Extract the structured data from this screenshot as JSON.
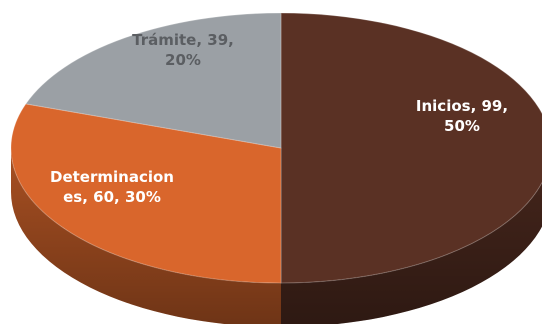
{
  "chart_data": {
    "type": "pie",
    "style": "3d",
    "title": "",
    "slices": [
      {
        "category": "Inicios",
        "value": 99,
        "percent": 50,
        "label_lines": [
          "Inicios, 99,",
          "50%"
        ],
        "color": "#5a3124",
        "label_color": "#ffffff"
      },
      {
        "category": "Determinaciones",
        "value": 60,
        "percent": 30,
        "label_lines": [
          "Determinacion",
          "es, 60, 30%"
        ],
        "color": "#d9662c",
        "label_color": "#ffffff"
      },
      {
        "category": "Trámite",
        "value": 39,
        "percent": 20,
        "label_lines": [
          "Trámite, 39,",
          "20%"
        ],
        "color": "#9ba0a5",
        "label_color": "#5b5e62"
      }
    ],
    "legend": "none"
  }
}
